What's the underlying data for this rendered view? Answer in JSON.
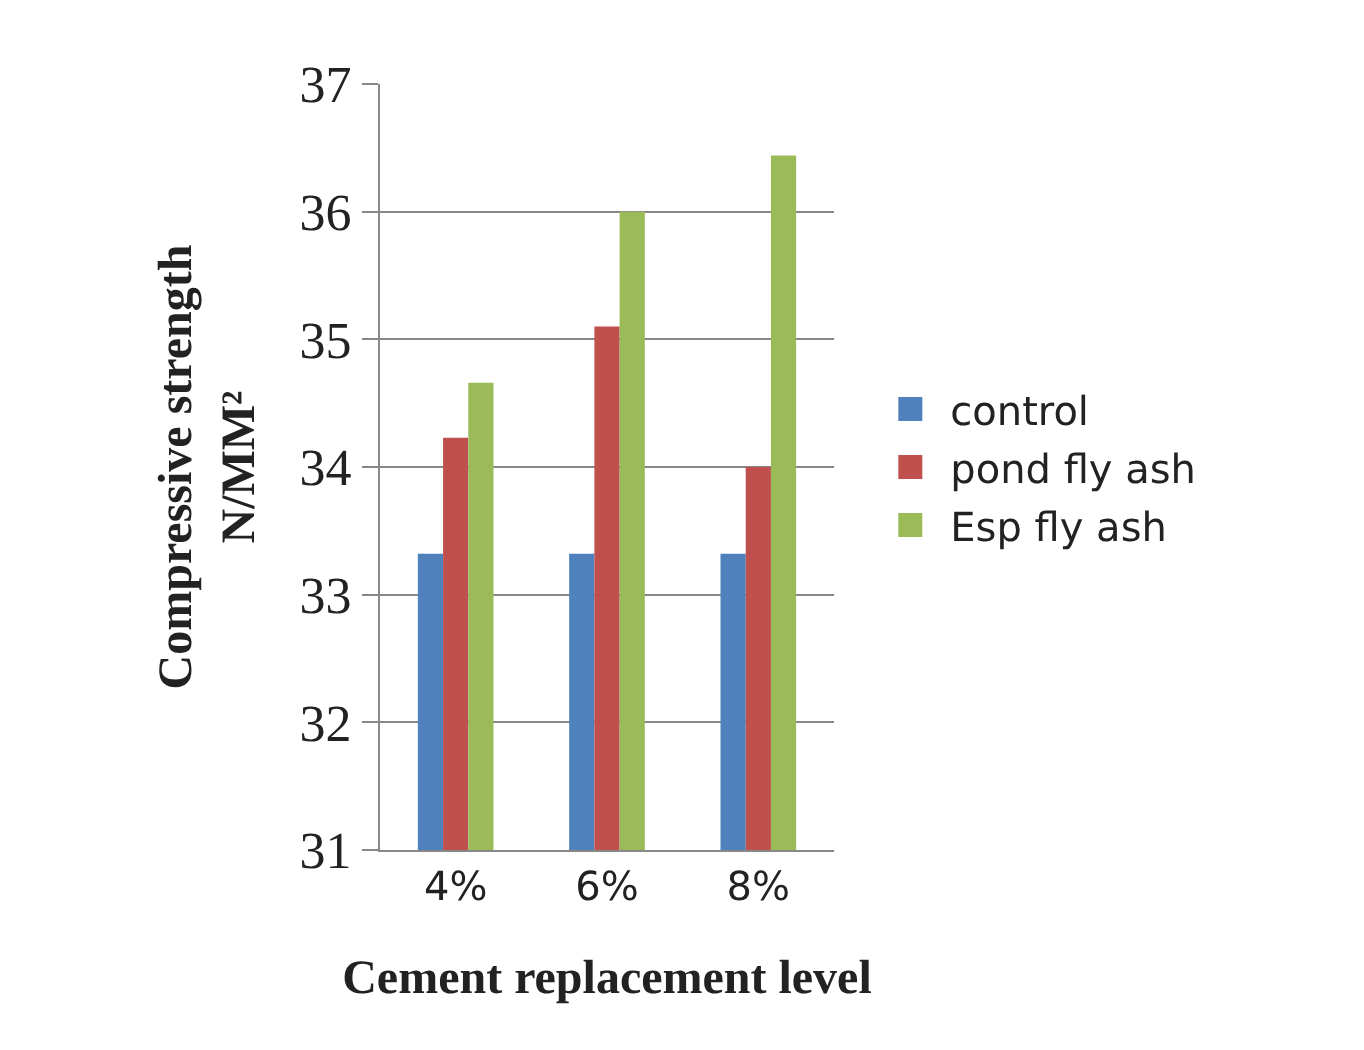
{
  "chart_data": {
    "type": "bar",
    "xlabel": "Cement replacement level",
    "ylabel": "Compressive strength\nN/MM²",
    "categories": [
      "4%",
      "6%",
      "8%"
    ],
    "series": [
      {
        "name": "control",
        "color": "#4f81bd",
        "values": [
          33.32,
          33.32,
          33.32
        ]
      },
      {
        "name": "pond fly ash",
        "color": "#c0504d",
        "values": [
          34.23,
          35.1,
          34.0
        ]
      },
      {
        "name": "Esp fly ash",
        "color": "#9bbb59",
        "values": [
          34.66,
          36.0,
          36.44
        ]
      }
    ],
    "ylim": [
      31,
      37
    ],
    "yticks": [
      31,
      32,
      33,
      34,
      35,
      36,
      37
    ],
    "grid": "y",
    "legend": "right"
  }
}
